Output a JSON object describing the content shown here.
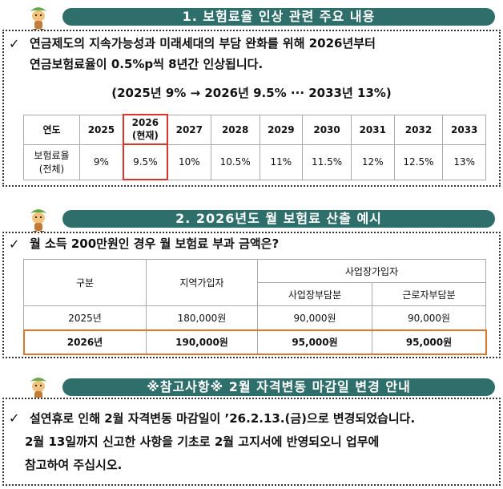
{
  "section1": {
    "title": "1. 보험료율 인상 관련 주요 내용",
    "check": "✓",
    "line1": "연금제도의 지속가능성과 미래세대의 부담 완화를 위해 2026년부터",
    "line2": "연금보험료율이 0.5%p씩 8년간 인상됩니다.",
    "summary": "(2025년 9% → 2026년 9.5% ··· 2033년 13%)",
    "table": {
      "header_label": "연도",
      "row_label_line1": "보험료율",
      "row_label_line2": "(전체)",
      "years": [
        "2025",
        "2026",
        "2027",
        "2028",
        "2029",
        "2030",
        "2031",
        "2032",
        "2033"
      ],
      "current_note": "(현재)",
      "rates": [
        "9%",
        "9.5%",
        "10%",
        "10.5%",
        "11%",
        "11.5%",
        "12%",
        "12.5%",
        "13%"
      ]
    }
  },
  "section2": {
    "title": "2. 2026년도 월 보험료 산출 예시",
    "check": "✓",
    "question": "월 소득 200만원인 경우 월 보험료 부과 금액은?",
    "table": {
      "h_category": "구분",
      "h_regional": "지역가입자",
      "h_workplace": "사업장가입자",
      "h_employer": "사업장부담분",
      "h_employee": "근로자부담분",
      "rows": [
        {
          "year": "2025년",
          "regional": "180,000원",
          "employer": "90,000원",
          "employee": "90,000원"
        },
        {
          "year": "2026년",
          "regional": "190,000원",
          "employer": "95,000원",
          "employee": "95,000원"
        }
      ]
    }
  },
  "section3": {
    "title": "※참고사항※  2월 자격변동 마감일 변경 안내",
    "check": "✓",
    "line1": "설연휴로 인해 2월 자격변동 마감일이 ’26.2.13.(금)으로 변경되었습니다.",
    "line2": "2월 13일까지 신고한 사항을 기초로 2월 고지서에 반영되오니 업무에",
    "line3": "참고하여 주십시오."
  },
  "colors": {
    "header_bg": "#2f6f6b",
    "highlight_red": "#d9342b",
    "highlight_orange": "#d9782b"
  }
}
